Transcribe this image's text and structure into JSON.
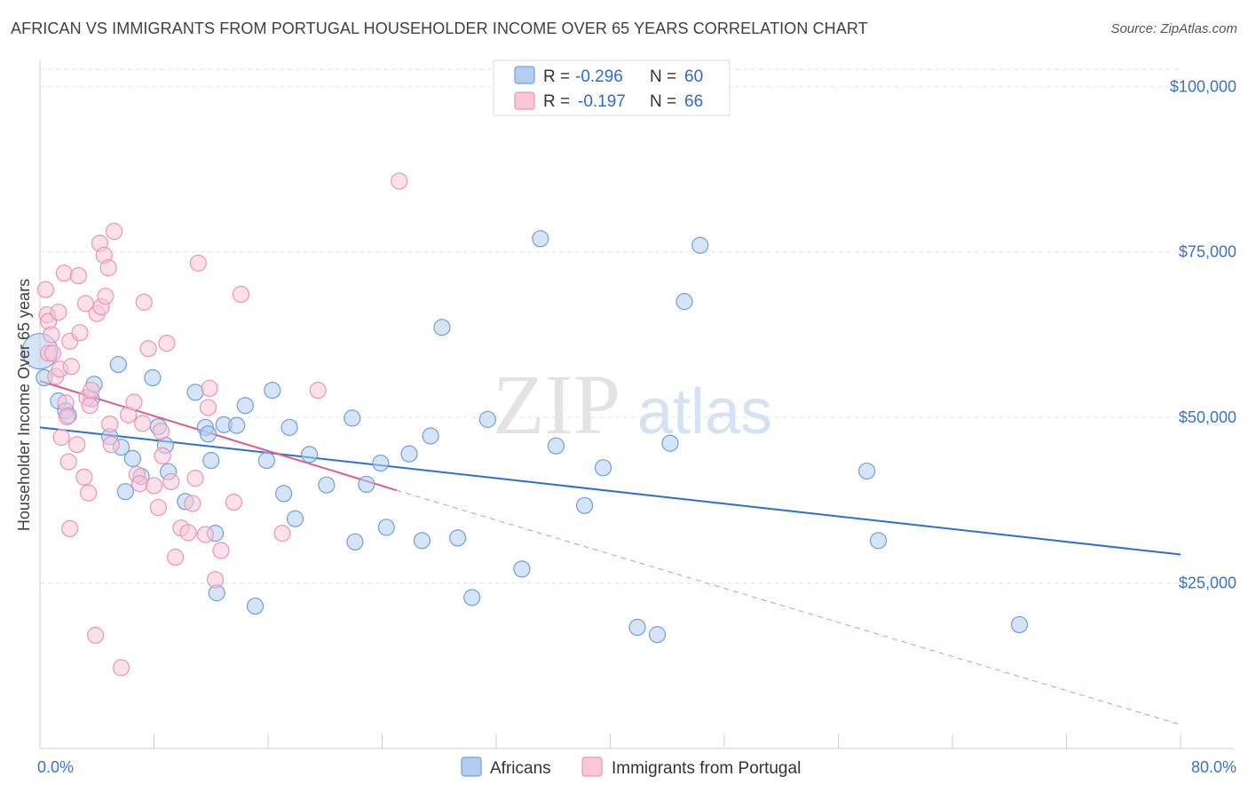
{
  "title": "AFRICAN VS IMMIGRANTS FROM PORTUGAL HOUSEHOLDER INCOME OVER 65 YEARS CORRELATION CHART",
  "source": "Source: ZipAtlas.com",
  "watermark": {
    "zip": "ZIP",
    "atlas": "atlas"
  },
  "chart_data": {
    "type": "scatter",
    "ylabel": "Householder Income Over 65 years",
    "xlim": [
      0,
      80
    ],
    "ylim": [
      0,
      105000
    ],
    "x_tick_labels": [
      {
        "value": 0,
        "label": "0.0%"
      },
      {
        "value": 80,
        "label": "80.0%"
      }
    ],
    "y_ticks": [
      {
        "value": 25000,
        "label": "$25,000"
      },
      {
        "value": 50000,
        "label": "$50,000"
      },
      {
        "value": 75000,
        "label": "$75,000"
      },
      {
        "value": 100000,
        "label": "$100,000"
      }
    ],
    "grid": true,
    "legend_position": "top-center",
    "series": [
      {
        "name": "Africans",
        "color": "#6fa0dd",
        "fill": "#b3cdf0",
        "line_color": "#2d6fd1",
        "R_label": "R =",
        "R": "-0.296",
        "N_label": "N =",
        "N": "60",
        "trend": {
          "x0": 0,
          "y0": 48500,
          "x1": 80,
          "y1": 29300
        },
        "points": [
          [
            0.0,
            60000
          ],
          [
            0.3,
            56000
          ],
          [
            1.3,
            52500
          ],
          [
            1.8,
            51000
          ],
          [
            2.0,
            50300
          ],
          [
            3.8,
            55000
          ],
          [
            3.6,
            52800
          ],
          [
            5.5,
            58000
          ],
          [
            4.9,
            47100
          ],
          [
            5.7,
            45500
          ],
          [
            6.0,
            38800
          ],
          [
            6.5,
            43800
          ],
          [
            7.1,
            41100
          ],
          [
            7.9,
            56000
          ],
          [
            8.3,
            48600
          ],
          [
            8.8,
            45800
          ],
          [
            9.0,
            41800
          ],
          [
            10.2,
            37300
          ],
          [
            10.9,
            53800
          ],
          [
            11.6,
            48500
          ],
          [
            11.8,
            47500
          ],
          [
            12.0,
            43500
          ],
          [
            12.3,
            32500
          ],
          [
            12.4,
            23500
          ],
          [
            12.9,
            48900
          ],
          [
            13.8,
            48800
          ],
          [
            14.4,
            51800
          ],
          [
            15.1,
            21500
          ],
          [
            15.9,
            43500
          ],
          [
            16.3,
            54100
          ],
          [
            17.1,
            38500
          ],
          [
            17.5,
            48500
          ],
          [
            17.9,
            34700
          ],
          [
            18.9,
            44400
          ],
          [
            20.1,
            39800
          ],
          [
            21.9,
            49900
          ],
          [
            22.1,
            31200
          ],
          [
            22.9,
            39900
          ],
          [
            23.9,
            43100
          ],
          [
            24.3,
            33400
          ],
          [
            25.9,
            44500
          ],
          [
            26.8,
            31400
          ],
          [
            27.4,
            47200
          ],
          [
            28.2,
            63600
          ],
          [
            29.3,
            31800
          ],
          [
            30.3,
            22800
          ],
          [
            31.4,
            49700
          ],
          [
            33.8,
            27100
          ],
          [
            35.1,
            77000
          ],
          [
            36.2,
            45700
          ],
          [
            38.2,
            36700
          ],
          [
            39.5,
            42400
          ],
          [
            41.9,
            18300
          ],
          [
            43.3,
            17200
          ],
          [
            44.2,
            46100
          ],
          [
            45.2,
            67500
          ],
          [
            46.3,
            76000
          ],
          [
            58.0,
            41900
          ],
          [
            58.8,
            31400
          ],
          [
            68.7,
            18700
          ]
        ]
      },
      {
        "name": "Immigrants from Portugal",
        "color": "#ee93b2",
        "fill": "#f9c7d8",
        "line_color": "#e05a8c",
        "R_label": "R =",
        "R": "-0.197",
        "N_label": "N =",
        "N": "66",
        "trend": {
          "x0": 0,
          "y0": 55500,
          "x1": 25,
          "y1": 39000
        },
        "trend_extension": {
          "x0": 25,
          "y0": 39000,
          "x1": 80,
          "y1": 3600
        },
        "points": [
          [
            0.4,
            69300
          ],
          [
            0.5,
            65500
          ],
          [
            0.6,
            64500
          ],
          [
            0.6,
            59700
          ],
          [
            0.8,
            62500
          ],
          [
            0.9,
            59700
          ],
          [
            1.1,
            56200
          ],
          [
            1.3,
            65900
          ],
          [
            1.4,
            57300
          ],
          [
            1.5,
            47000
          ],
          [
            1.7,
            71800
          ],
          [
            1.8,
            52200
          ],
          [
            1.9,
            50100
          ],
          [
            2.0,
            43300
          ],
          [
            2.1,
            33200
          ],
          [
            2.1,
            61500
          ],
          [
            2.2,
            57700
          ],
          [
            2.6,
            45900
          ],
          [
            2.7,
            71400
          ],
          [
            2.8,
            62800
          ],
          [
            3.1,
            41000
          ],
          [
            3.2,
            67200
          ],
          [
            3.3,
            53000
          ],
          [
            3.4,
            38600
          ],
          [
            3.5,
            51800
          ],
          [
            3.6,
            54100
          ],
          [
            3.9,
            17100
          ],
          [
            4.0,
            65700
          ],
          [
            4.2,
            76300
          ],
          [
            4.3,
            66700
          ],
          [
            4.5,
            74500
          ],
          [
            4.6,
            68300
          ],
          [
            4.8,
            72600
          ],
          [
            4.9,
            49000
          ],
          [
            5.0,
            45900
          ],
          [
            5.2,
            78100
          ],
          [
            5.7,
            12200
          ],
          [
            6.2,
            50400
          ],
          [
            6.6,
            52300
          ],
          [
            6.8,
            41400
          ],
          [
            7.0,
            40000
          ],
          [
            7.2,
            49100
          ],
          [
            7.3,
            67400
          ],
          [
            7.6,
            60400
          ],
          [
            8.0,
            39700
          ],
          [
            8.3,
            36400
          ],
          [
            8.5,
            47900
          ],
          [
            8.6,
            44200
          ],
          [
            8.9,
            61200
          ],
          [
            9.2,
            40300
          ],
          [
            9.5,
            28900
          ],
          [
            9.9,
            33300
          ],
          [
            10.4,
            32600
          ],
          [
            10.7,
            37000
          ],
          [
            10.9,
            40800
          ],
          [
            11.1,
            73300
          ],
          [
            11.6,
            32300
          ],
          [
            11.8,
            51500
          ],
          [
            11.9,
            54400
          ],
          [
            12.3,
            25500
          ],
          [
            12.7,
            29900
          ],
          [
            13.6,
            37200
          ],
          [
            14.1,
            68600
          ],
          [
            17.0,
            32500
          ],
          [
            19.5,
            54100
          ],
          [
            25.2,
            85700
          ]
        ]
      }
    ]
  }
}
